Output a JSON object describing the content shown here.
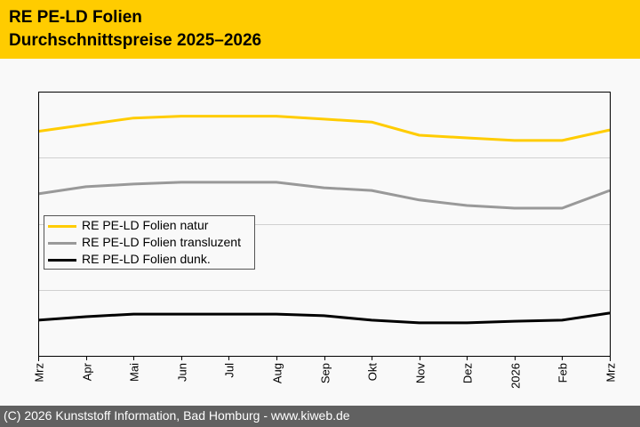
{
  "header": {
    "title_line1": "RE PE-LD Folien",
    "title_line2": "Durchschnittspreise 2025–2026"
  },
  "footer": {
    "text": "(C) 2026 Kunststoff Information, Bad Homburg - www.kiweb.de"
  },
  "colors": {
    "header_bg": "#ffcc00",
    "footer_bg": "#616161",
    "series_natur": "#ffcc00",
    "series_transluzent": "#999999",
    "series_dunk": "#000000"
  },
  "chart_data": {
    "type": "line",
    "title": "RE PE-LD Folien Durchschnittspreise 2025–2026",
    "xlabel": "",
    "ylabel": "",
    "y_axis_labels_shown": false,
    "ylim": [
      0,
      100
    ],
    "y_units": "relative (no scale shown)",
    "gridlines_y": [
      25,
      50,
      75
    ],
    "grid": true,
    "legend_position": "center-left",
    "categories": [
      "Mrz",
      "Apr",
      "Mai",
      "Jun",
      "Jul",
      "Aug",
      "Sep",
      "Okt",
      "Nov",
      "Dez",
      "2026",
      "Feb",
      "Mrz"
    ],
    "series": [
      {
        "name": "RE PE-LD Folien natur",
        "color": "#ffcc00",
        "values": [
          85,
          87.5,
          90,
          90.7,
          90.7,
          90.7,
          89.6,
          88.5,
          83.5,
          82.5,
          81.5,
          81.5,
          85.5
        ]
      },
      {
        "name": "RE PE-LD Folien transluzent",
        "color": "#999999",
        "values": [
          61.3,
          64,
          65,
          65.7,
          65.7,
          65.7,
          63.6,
          62.6,
          59,
          56.9,
          55.9,
          55.9,
          62.6
        ]
      },
      {
        "name": "RE PE-LD Folien dunk.",
        "color": "#000000",
        "values": [
          13.5,
          14.8,
          15.8,
          15.8,
          15.8,
          15.8,
          15.2,
          13.5,
          12.5,
          12.5,
          13.1,
          13.5,
          16.2
        ]
      }
    ]
  }
}
